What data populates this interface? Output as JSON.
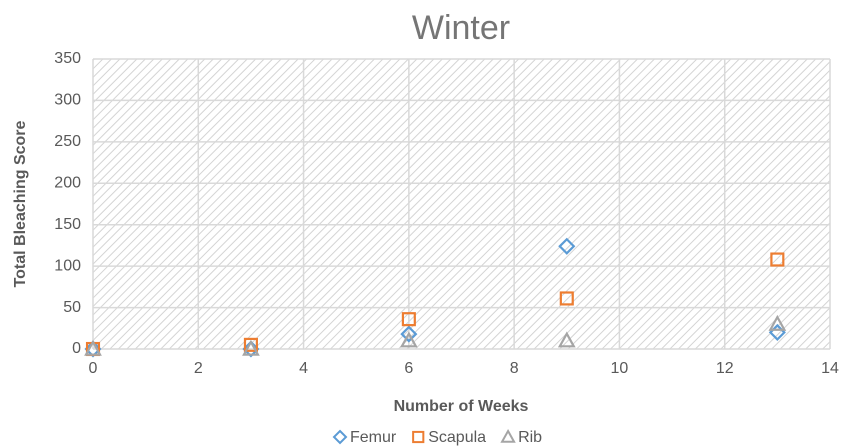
{
  "chart_data": {
    "type": "scatter",
    "title": "Winter",
    "xlabel": "Number of Weeks",
    "ylabel": "Total Bleaching Score",
    "xlim": [
      0,
      14
    ],
    "xticks": [
      0,
      2,
      4,
      6,
      8,
      10,
      12,
      14
    ],
    "ylim": [
      0,
      350
    ],
    "yticks": [
      0,
      50,
      100,
      150,
      200,
      250,
      300,
      350
    ],
    "grid": true,
    "legend": "bottom",
    "series": [
      {
        "name": "Femur",
        "color": "#5b9bd5",
        "marker": "diamond",
        "x": [
          0,
          3,
          6,
          9,
          13
        ],
        "values": [
          0,
          0,
          18,
          124,
          20
        ]
      },
      {
        "name": "Scapula",
        "color": "#ed7d31",
        "marker": "square",
        "x": [
          0,
          3,
          6,
          9,
          13
        ],
        "values": [
          0,
          5,
          36,
          61,
          108
        ]
      },
      {
        "name": "Rib",
        "color": "#a5a5a5",
        "marker": "triangle",
        "x": [
          0,
          3,
          6,
          9,
          13
        ],
        "values": [
          0,
          0,
          10,
          10,
          30
        ]
      }
    ]
  }
}
